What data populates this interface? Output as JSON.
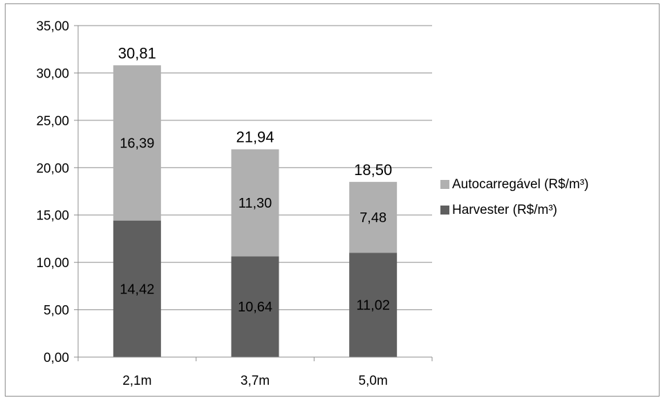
{
  "chart_data": {
    "type": "bar",
    "stacked": true,
    "categories": [
      "2,1m",
      "3,7m",
      "5,0m"
    ],
    "series": [
      {
        "name": "Harvester (R$/m³)",
        "values": [
          14.42,
          10.64,
          11.02
        ],
        "labels": [
          "14,42",
          "10,64",
          "11,02"
        ],
        "color": "#5f5f5f"
      },
      {
        "name": "Autocarregável (R$/m³)",
        "values": [
          16.39,
          11.3,
          7.48
        ],
        "labels": [
          "16,39",
          "11,30",
          "7,48"
        ],
        "color": "#b0b0b0"
      }
    ],
    "totals": [
      30.81,
      21.94,
      18.5
    ],
    "total_labels": [
      "30,81",
      "21,94",
      "18,50"
    ],
    "y_ticks": [
      "0,00",
      "5,00",
      "10,00",
      "15,00",
      "20,00",
      "25,00",
      "30,00",
      "35,00"
    ],
    "ylim": [
      0,
      35
    ],
    "grid": true,
    "legend_position": "right",
    "gridline_color": "#8c8c8c"
  }
}
